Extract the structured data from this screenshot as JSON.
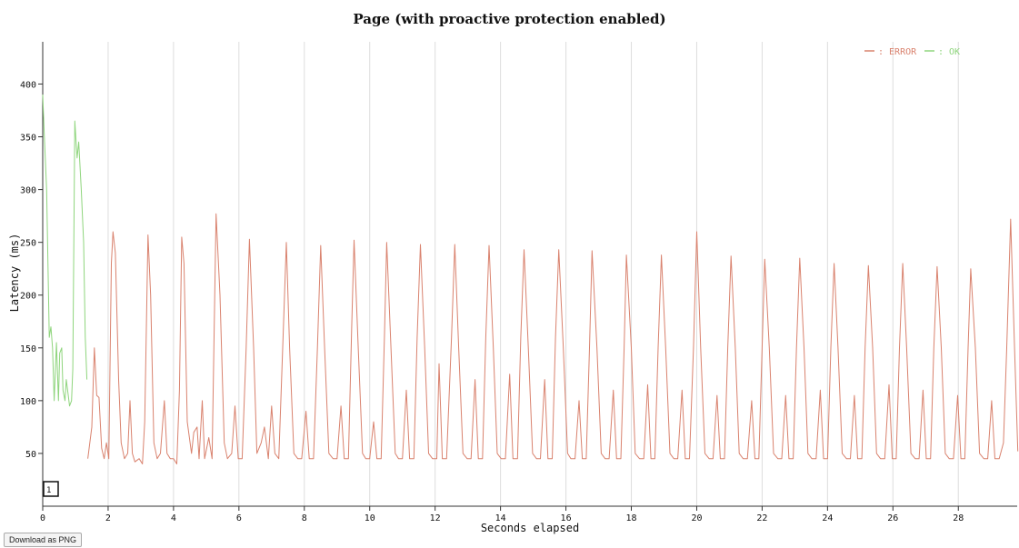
{
  "chart_data": {
    "type": "line",
    "title": "Page (with proactive protection enabled)",
    "xlabel": "Seconds elapsed",
    "ylabel": "Latency (ms)",
    "xlim": [
      0,
      29.8
    ],
    "ylim": [
      0,
      440
    ],
    "x_ticks": [
      0,
      2,
      4,
      6,
      8,
      10,
      12,
      14,
      16,
      18,
      20,
      22,
      24,
      26,
      28
    ],
    "y_ticks": [
      50,
      100,
      150,
      200,
      250,
      300,
      350,
      400
    ],
    "grid": "vertical",
    "legend_position": "top-right",
    "series": [
      {
        "name": ": ERROR",
        "color": "#d9826e",
        "points": [
          [
            1.38,
            45
          ],
          [
            1.5,
            75
          ],
          [
            1.58,
            150
          ],
          [
            1.65,
            105
          ],
          [
            1.72,
            103
          ],
          [
            1.8,
            55
          ],
          [
            1.88,
            45
          ],
          [
            1.95,
            60
          ],
          [
            2.02,
            45
          ],
          [
            2.1,
            230
          ],
          [
            2.15,
            260
          ],
          [
            2.22,
            240
          ],
          [
            2.32,
            120
          ],
          [
            2.4,
            60
          ],
          [
            2.5,
            45
          ],
          [
            2.6,
            50
          ],
          [
            2.67,
            100
          ],
          [
            2.74,
            50
          ],
          [
            2.82,
            42
          ],
          [
            2.95,
            45
          ],
          [
            3.05,
            40
          ],
          [
            3.12,
            80
          ],
          [
            3.22,
            257
          ],
          [
            3.3,
            200
          ],
          [
            3.4,
            60
          ],
          [
            3.5,
            45
          ],
          [
            3.6,
            50
          ],
          [
            3.72,
            100
          ],
          [
            3.8,
            50
          ],
          [
            3.9,
            45
          ],
          [
            4.0,
            45
          ],
          [
            4.1,
            40
          ],
          [
            4.18,
            110
          ],
          [
            4.25,
            255
          ],
          [
            4.32,
            230
          ],
          [
            4.42,
            80
          ],
          [
            4.55,
            50
          ],
          [
            4.62,
            70
          ],
          [
            4.72,
            75
          ],
          [
            4.78,
            45
          ],
          [
            4.88,
            100
          ],
          [
            4.95,
            45
          ],
          [
            5.08,
            65
          ],
          [
            5.18,
            45
          ],
          [
            5.3,
            277
          ],
          [
            5.42,
            200
          ],
          [
            5.55,
            60
          ],
          [
            5.65,
            45
          ],
          [
            5.78,
            50
          ],
          [
            5.88,
            95
          ],
          [
            5.98,
            45
          ],
          [
            6.1,
            45
          ],
          [
            6.22,
            150
          ],
          [
            6.32,
            253
          ],
          [
            6.45,
            150
          ],
          [
            6.55,
            50
          ],
          [
            6.68,
            60
          ],
          [
            6.78,
            75
          ],
          [
            6.9,
            45
          ],
          [
            7.0,
            95
          ],
          [
            7.1,
            50
          ],
          [
            7.22,
            45
          ],
          [
            7.35,
            160
          ],
          [
            7.45,
            250
          ],
          [
            7.55,
            150
          ],
          [
            7.68,
            50
          ],
          [
            7.8,
            45
          ],
          [
            7.92,
            45
          ],
          [
            8.05,
            90
          ],
          [
            8.15,
            45
          ],
          [
            8.28,
            45
          ],
          [
            8.4,
            150
          ],
          [
            8.5,
            247
          ],
          [
            8.62,
            150
          ],
          [
            8.75,
            50
          ],
          [
            8.88,
            45
          ],
          [
            9.0,
            45
          ],
          [
            9.12,
            95
          ],
          [
            9.22,
            45
          ],
          [
            9.35,
            45
          ],
          [
            9.45,
            170
          ],
          [
            9.52,
            252
          ],
          [
            9.65,
            150
          ],
          [
            9.78,
            50
          ],
          [
            9.88,
            45
          ],
          [
            10.0,
            45
          ],
          [
            10.12,
            80
          ],
          [
            10.22,
            45
          ],
          [
            10.35,
            45
          ],
          [
            10.45,
            160
          ],
          [
            10.52,
            250
          ],
          [
            10.65,
            150
          ],
          [
            10.78,
            50
          ],
          [
            10.88,
            45
          ],
          [
            11.0,
            45
          ],
          [
            11.12,
            110
          ],
          [
            11.22,
            45
          ],
          [
            11.35,
            45
          ],
          [
            11.45,
            160
          ],
          [
            11.55,
            248
          ],
          [
            11.68,
            150
          ],
          [
            11.8,
            50
          ],
          [
            11.92,
            45
          ],
          [
            12.05,
            45
          ],
          [
            12.12,
            135
          ],
          [
            12.22,
            45
          ],
          [
            12.35,
            45
          ],
          [
            12.5,
            160
          ],
          [
            12.6,
            248
          ],
          [
            12.72,
            150
          ],
          [
            12.85,
            50
          ],
          [
            12.98,
            45
          ],
          [
            13.1,
            45
          ],
          [
            13.22,
            120
          ],
          [
            13.32,
            45
          ],
          [
            13.45,
            45
          ],
          [
            13.55,
            160
          ],
          [
            13.65,
            247
          ],
          [
            13.78,
            150
          ],
          [
            13.9,
            50
          ],
          [
            14.02,
            45
          ],
          [
            14.15,
            45
          ],
          [
            14.28,
            125
          ],
          [
            14.38,
            45
          ],
          [
            14.52,
            45
          ],
          [
            14.62,
            160
          ],
          [
            14.72,
            243
          ],
          [
            14.85,
            150
          ],
          [
            14.98,
            50
          ],
          [
            15.1,
            45
          ],
          [
            15.22,
            45
          ],
          [
            15.35,
            120
          ],
          [
            15.45,
            45
          ],
          [
            15.58,
            45
          ],
          [
            15.68,
            160
          ],
          [
            15.78,
            243
          ],
          [
            15.92,
            150
          ],
          [
            16.05,
            50
          ],
          [
            16.15,
            45
          ],
          [
            16.28,
            45
          ],
          [
            16.4,
            100
          ],
          [
            16.5,
            45
          ],
          [
            16.62,
            45
          ],
          [
            16.72,
            150
          ],
          [
            16.8,
            242
          ],
          [
            16.95,
            150
          ],
          [
            17.08,
            50
          ],
          [
            17.2,
            45
          ],
          [
            17.32,
            45
          ],
          [
            17.45,
            110
          ],
          [
            17.55,
            45
          ],
          [
            17.68,
            45
          ],
          [
            17.78,
            150
          ],
          [
            17.85,
            238
          ],
          [
            18.0,
            150
          ],
          [
            18.12,
            50
          ],
          [
            18.25,
            45
          ],
          [
            18.38,
            45
          ],
          [
            18.5,
            115
          ],
          [
            18.6,
            45
          ],
          [
            18.72,
            45
          ],
          [
            18.82,
            150
          ],
          [
            18.92,
            238
          ],
          [
            19.05,
            150
          ],
          [
            19.18,
            50
          ],
          [
            19.3,
            45
          ],
          [
            19.42,
            45
          ],
          [
            19.55,
            110
          ],
          [
            19.65,
            45
          ],
          [
            19.78,
            45
          ],
          [
            19.9,
            150
          ],
          [
            20.0,
            260
          ],
          [
            20.12,
            150
          ],
          [
            20.25,
            50
          ],
          [
            20.38,
            45
          ],
          [
            20.5,
            45
          ],
          [
            20.62,
            105
          ],
          [
            20.72,
            45
          ],
          [
            20.85,
            45
          ],
          [
            20.95,
            150
          ],
          [
            21.05,
            237
          ],
          [
            21.18,
            150
          ],
          [
            21.3,
            50
          ],
          [
            21.42,
            45
          ],
          [
            21.55,
            45
          ],
          [
            21.68,
            100
          ],
          [
            21.78,
            45
          ],
          [
            21.9,
            45
          ],
          [
            22.0,
            150
          ],
          [
            22.08,
            234
          ],
          [
            22.22,
            150
          ],
          [
            22.35,
            50
          ],
          [
            22.48,
            45
          ],
          [
            22.6,
            45
          ],
          [
            22.72,
            105
          ],
          [
            22.82,
            45
          ],
          [
            22.95,
            45
          ],
          [
            23.05,
            150
          ],
          [
            23.15,
            235
          ],
          [
            23.28,
            150
          ],
          [
            23.4,
            50
          ],
          [
            23.52,
            45
          ],
          [
            23.65,
            45
          ],
          [
            23.78,
            110
          ],
          [
            23.88,
            45
          ],
          [
            24.0,
            45
          ],
          [
            24.1,
            150
          ],
          [
            24.2,
            230
          ],
          [
            24.32,
            150
          ],
          [
            24.45,
            50
          ],
          [
            24.58,
            45
          ],
          [
            24.7,
            45
          ],
          [
            24.82,
            105
          ],
          [
            24.92,
            45
          ],
          [
            25.05,
            45
          ],
          [
            25.15,
            150
          ],
          [
            25.25,
            228
          ],
          [
            25.38,
            150
          ],
          [
            25.5,
            50
          ],
          [
            25.62,
            45
          ],
          [
            25.75,
            45
          ],
          [
            25.88,
            115
          ],
          [
            25.98,
            45
          ],
          [
            26.1,
            45
          ],
          [
            26.2,
            150
          ],
          [
            26.3,
            230
          ],
          [
            26.42,
            150
          ],
          [
            26.55,
            50
          ],
          [
            26.68,
            45
          ],
          [
            26.8,
            45
          ],
          [
            26.92,
            110
          ],
          [
            27.02,
            45
          ],
          [
            27.15,
            45
          ],
          [
            27.25,
            150
          ],
          [
            27.35,
            227
          ],
          [
            27.48,
            150
          ],
          [
            27.6,
            50
          ],
          [
            27.72,
            45
          ],
          [
            27.85,
            45
          ],
          [
            27.98,
            105
          ],
          [
            28.08,
            45
          ],
          [
            28.2,
            45
          ],
          [
            28.3,
            150
          ],
          [
            28.38,
            225
          ],
          [
            28.52,
            150
          ],
          [
            28.65,
            50
          ],
          [
            28.78,
            45
          ],
          [
            28.9,
            45
          ],
          [
            29.02,
            100
          ],
          [
            29.12,
            45
          ],
          [
            29.25,
            45
          ],
          [
            29.38,
            60
          ],
          [
            29.48,
            150
          ],
          [
            29.6,
            272
          ],
          [
            29.72,
            150
          ],
          [
            29.82,
            52
          ]
        ]
      },
      {
        "name": ": OK",
        "color": "#8fd57d",
        "points": [
          [
            0.0,
            390
          ],
          [
            0.05,
            350
          ],
          [
            0.12,
            300
          ],
          [
            0.2,
            160
          ],
          [
            0.25,
            170
          ],
          [
            0.3,
            150
          ],
          [
            0.35,
            100
          ],
          [
            0.42,
            155
          ],
          [
            0.48,
            100
          ],
          [
            0.52,
            145
          ],
          [
            0.58,
            150
          ],
          [
            0.62,
            110
          ],
          [
            0.68,
            100
          ],
          [
            0.72,
            120
          ],
          [
            0.78,
            105
          ],
          [
            0.82,
            95
          ],
          [
            0.88,
            100
          ],
          [
            0.92,
            130
          ],
          [
            0.98,
            365
          ],
          [
            1.05,
            330
          ],
          [
            1.1,
            345
          ],
          [
            1.18,
            300
          ],
          [
            1.25,
            250
          ],
          [
            1.3,
            160
          ],
          [
            1.35,
            120
          ]
        ]
      }
    ]
  },
  "legend_items": [
    ": ERROR",
    ": OK"
  ],
  "marker_label": "1",
  "download_label": "Download as PNG"
}
